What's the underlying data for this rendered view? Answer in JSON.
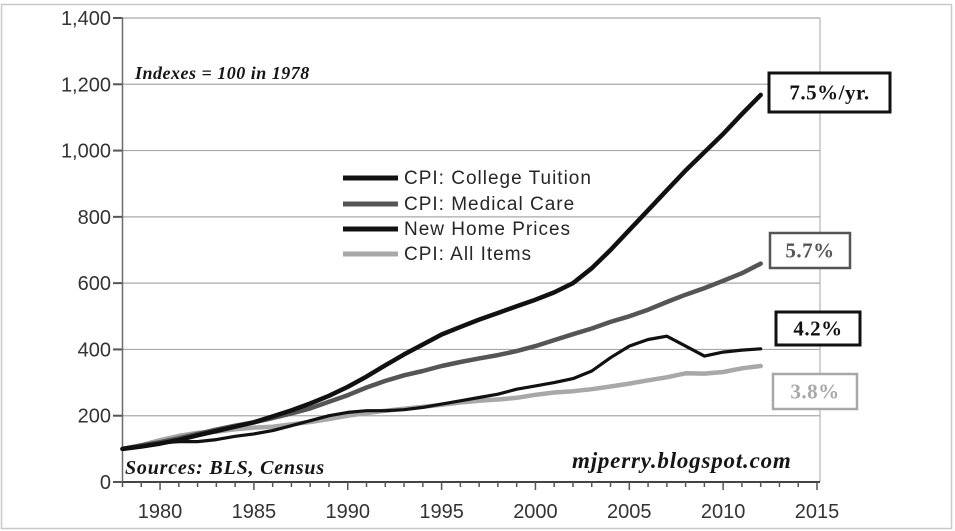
{
  "chart_data": {
    "type": "line",
    "annotations": {
      "index_note": "Indexes = 100 in 1978",
      "sources": "Sources: BLS, Census",
      "credit": "mjperry.blogspot.com"
    },
    "xlim": [
      1978,
      2015
    ],
    "ylim": [
      0,
      1400
    ],
    "x_tick_labels": [
      "1980",
      "1985",
      "1990",
      "1995",
      "2000",
      "2005",
      "2010",
      "2015"
    ],
    "y_tick_labels": [
      "0",
      "200",
      "400",
      "600",
      "800",
      "1,000",
      "1,200",
      "1,400"
    ],
    "grid": true,
    "legend_position": "center",
    "x": [
      1978,
      1979,
      1980,
      1981,
      1982,
      1983,
      1984,
      1985,
      1986,
      1987,
      1988,
      1989,
      1990,
      1991,
      1992,
      1993,
      1994,
      1995,
      1996,
      1997,
      1998,
      1999,
      2000,
      2001,
      2002,
      2003,
      2004,
      2005,
      2006,
      2007,
      2008,
      2009,
      2010,
      2011,
      2012
    ],
    "series": [
      {
        "name": "CPI: College Tuition",
        "color": "#111111",
        "end_label": "7.5%/yr.",
        "values": [
          100,
          107,
          116,
          127,
          141,
          154,
          167,
          180,
          198,
          216,
          237,
          260,
          287,
          318,
          352,
          385,
          415,
          445,
          468,
          490,
          510,
          530,
          550,
          572,
          600,
          645,
          700,
          760,
          820,
          880,
          940,
          995,
          1050,
          1110,
          1168
        ]
      },
      {
        "name": "CPI: Medical Care",
        "color": "#555555",
        "end_label": "5.7%",
        "values": [
          100,
          110,
          120,
          132,
          145,
          158,
          170,
          180,
          193,
          207,
          222,
          242,
          262,
          285,
          305,
          322,
          335,
          350,
          362,
          373,
          383,
          395,
          410,
          428,
          446,
          463,
          483,
          500,
          520,
          543,
          565,
          585,
          607,
          630,
          659
        ]
      },
      {
        "name": "New Home Prices",
        "color": "#111111",
        "end_label": "4.2%",
        "values": [
          100,
          112,
          118,
          122,
          122,
          128,
          138,
          145,
          155,
          170,
          185,
          200,
          210,
          215,
          215,
          218,
          225,
          235,
          245,
          255,
          265,
          280,
          290,
          300,
          312,
          335,
          375,
          410,
          430,
          440,
          410,
          380,
          392,
          398,
          402
        ]
      },
      {
        "name": "CPI: All Items",
        "color": "#a8a8a8",
        "end_label": "3.8%",
        "values": [
          100,
          111,
          126,
          139,
          148,
          152,
          159,
          164,
          167,
          174,
          181,
          190,
          200,
          208,
          215,
          221,
          227,
          233,
          240,
          245,
          249,
          254,
          263,
          270,
          274,
          280,
          288,
          297,
          307,
          316,
          328,
          327,
          332,
          343,
          350
        ]
      }
    ]
  }
}
